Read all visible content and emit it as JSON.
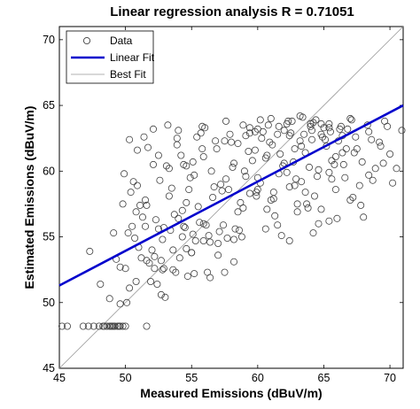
{
  "chart_data": {
    "type": "scatter",
    "title": "Linear regression analysis R = 0.71051",
    "xlabel": "Measured Emissions (dBuV/m)",
    "ylabel": "Estimated Emissions (dBuV/m)",
    "xlim": [
      45,
      71
    ],
    "ylim": [
      45,
      71
    ],
    "xticks": [
      "45",
      "50",
      "55",
      "60",
      "65",
      "70"
    ],
    "yticks": [
      "45",
      "50",
      "55",
      "60",
      "65",
      "70"
    ],
    "grid": false,
    "legend_position": "top-left",
    "legend": [
      "Data",
      "Linear Fit",
      "Best Fit"
    ],
    "colors": {
      "data": "#404040",
      "linear_fit": "#0000cc",
      "best_fit": "#999999"
    },
    "linear_fit": {
      "x": [
        45,
        71
      ],
      "y": [
        51.3,
        65.0
      ]
    },
    "best_fit": {
      "x": [
        45,
        71
      ],
      "y": [
        45,
        71
      ]
    },
    "series": [
      {
        "name": "Data",
        "x": [
          45.2,
          45.6,
          46.8,
          47.2,
          47.6,
          48.0,
          48.3,
          48.6,
          48.8,
          49.0,
          49.2,
          49.4,
          49.6,
          49.8,
          50.0,
          48.4,
          48.9,
          49.1,
          49.5,
          51.6,
          47.3,
          48.1,
          48.8,
          49.1,
          49.6,
          49.9,
          50.3,
          50.8,
          51.2,
          51.6,
          52.0,
          52.4,
          52.9,
          53.3,
          53.8,
          54.2,
          54.6,
          55.0,
          55.4,
          55.9,
          49.3,
          49.8,
          50.1,
          50.5,
          50.9,
          51.4,
          51.8,
          52.3,
          52.7,
          53.1,
          53.6,
          54.0,
          54.5,
          54.9,
          55.3,
          55.8,
          56.2,
          56.6,
          57.1,
          57.5,
          49.6,
          50.2,
          50.6,
          51.0,
          51.5,
          51.9,
          52.5,
          52.8,
          53.2,
          53.7,
          54.1,
          54.4,
          54.8,
          55.2,
          55.7,
          56.1,
          56.5,
          57.0,
          57.3,
          57.9,
          50.0,
          50.4,
          50.8,
          51.3,
          51.7,
          52.2,
          52.6,
          53.0,
          53.4,
          53.9,
          54.3,
          54.7,
          55.1,
          55.6,
          56.0,
          56.4,
          56.9,
          57.4,
          57.8,
          58.2,
          50.3,
          50.7,
          51.1,
          51.6,
          52.1,
          52.5,
          52.9,
          53.5,
          53.9,
          54.3,
          54.6,
          55.0,
          55.5,
          55.9,
          56.3,
          56.8,
          57.2,
          57.7,
          58.1,
          58.6,
          58.9,
          59.3,
          59.8,
          60.2,
          60.6,
          61.0,
          61.5,
          61.9,
          62.3,
          62.8,
          63.2,
          63.6,
          64.1,
          64.5,
          64.9,
          65.4,
          65.8,
          66.2,
          66.7,
          67.1,
          58.5,
          59.0,
          59.4,
          59.9,
          60.3,
          60.7,
          61.2,
          61.6,
          62.0,
          62.5,
          62.9,
          63.3,
          63.8,
          64.2,
          64.6,
          65.1,
          65.5,
          65.9,
          66.4,
          66.8,
          58.2,
          58.7,
          59.1,
          59.6,
          60.0,
          60.4,
          60.9,
          61.3,
          61.7,
          62.2,
          62.6,
          63.0,
          63.5,
          63.9,
          64.3,
          64.8,
          65.2,
          65.6,
          66.1,
          66.5,
          57.6,
          58.0,
          58.5,
          58.9,
          59.4,
          59.8,
          60.2,
          60.7,
          61.1,
          61.5,
          62.0,
          62.4,
          62.8,
          63.3,
          63.7,
          64.1,
          64.6,
          65.0,
          65.4,
          65.9,
          67.4,
          67.9,
          68.3,
          68.7,
          69.2,
          69.6,
          70.0,
          70.5,
          70.9,
          67.0,
          67.5,
          68.0,
          68.4,
          68.9,
          69.3,
          69.8,
          70.2,
          67.7,
          68.6,
          69.5,
          50.9,
          51.5,
          52.1,
          52.7,
          53.3,
          54.0,
          54.6,
          55.2,
          55.8,
          56.4,
          57.0,
          57.6,
          58.2,
          58.8,
          59.4,
          60.0,
          60.6,
          61.2,
          61.8,
          62.4,
          63.0,
          63.6,
          64.2,
          64.8,
          65.4,
          66.0,
          66.6,
          67.2,
          67.8,
          68.4,
          60.0,
          61.0,
          62.2,
          63.4,
          64.4,
          65.4,
          66.4,
          67.3,
          64.0,
          62.7,
          52.2,
          52.8,
          53.6,
          54.4,
          55.1,
          55.9,
          56.7,
          57.5,
          58.3,
          59.1,
          59.9,
          60.8,
          61.6,
          62.4,
          63.2,
          64.0,
          64.8,
          65.6,
          66.3,
          67.0
        ],
        "y": [
          48.2,
          48.2,
          48.2,
          48.2,
          48.2,
          48.2,
          48.2,
          48.2,
          48.2,
          48.2,
          48.2,
          48.2,
          48.2,
          48.2,
          48.2,
          48.2,
          48.2,
          48.2,
          48.2,
          48.2,
          53.9,
          51.4,
          50.3,
          55.3,
          52.7,
          59.8,
          62.4,
          56.9,
          53.4,
          57.4,
          54.0,
          51.4,
          55.7,
          60.2,
          52.3,
          61.2,
          57.6,
          53.8,
          62.6,
          56.0,
          53.3,
          57.5,
          50.0,
          55.8,
          58.9,
          62.6,
          53.0,
          56.3,
          50.6,
          60.4,
          52.5,
          63.1,
          55.7,
          59.5,
          54.7,
          61.7,
          52.3,
          58.0,
          55.4,
          62.3,
          49.9,
          55.3,
          59.2,
          54.2,
          57.8,
          51.6,
          61.2,
          54.8,
          63.5,
          56.7,
          53.4,
          60.5,
          58.6,
          52.2,
          62.9,
          55.9,
          60.0,
          53.6,
          58.5,
          62.8,
          52.6,
          58.4,
          51.6,
          56.5,
          61.8,
          53.5,
          59.3,
          50.4,
          55.5,
          62.0,
          57.0,
          52.0,
          60.7,
          56.1,
          63.3,
          54.6,
          61.7,
          55.9,
          58.6,
          53.1,
          51.1,
          54.9,
          57.4,
          53.2,
          60.5,
          55.6,
          52.6,
          58.7,
          62.5,
          55.0,
          60.4,
          53.8,
          57.3,
          61.1,
          55.1,
          62.3,
          59.0,
          54.9,
          60.3,
          55.5,
          57.2,
          61.5,
          63.0,
          59.1,
          61.0,
          57.8,
          62.8,
          60.4,
          63.8,
          58.9,
          62.3,
          61.4,
          63.1,
          59.6,
          62.6,
          63.6,
          60.5,
          63.2,
          61.7,
          63.9,
          62.1,
          60.0,
          63.3,
          58.1,
          62.5,
          61.2,
          57.9,
          63.4,
          60.6,
          62.9,
          59.4,
          61.9,
          57.2,
          63.7,
          60.1,
          62.4,
          63.0,
          58.6,
          61.4,
          63.2,
          60.6,
          57.6,
          62.7,
          60.8,
          59.5,
          63.0,
          62.2,
          56.6,
          61.3,
          59.9,
          63.8,
          57.5,
          62.8,
          60.3,
          58.1,
          63.6,
          61.9,
          59.4,
          62.3,
          60.5,
          59.4,
          62.2,
          56.9,
          63.5,
          58.3,
          61.6,
          63.9,
          57.1,
          62.0,
          55.9,
          63.1,
          58.8,
          61.7,
          59.2,
          57.5,
          62.4,
          56.0,
          63.3,
          59.9,
          61.1,
          62.6,
          60.7,
          63.5,
          59.3,
          62.2,
          63.8,
          61.3,
          60.2,
          63.1,
          57.8,
          61.7,
          56.5,
          63.0,
          60.2,
          61.9,
          63.4,
          59.1,
          58.9,
          62.4,
          60.6,
          61.6,
          55.8,
          63.2,
          53.2,
          58.1,
          56.4,
          54.1,
          59.7,
          63.4,
          51.9,
          54.5,
          63.8,
          54.8,
          55.0,
          62.9,
          58.6,
          55.6,
          58.4,
          55.1,
          54.7,
          56.9,
          58.4,
          55.3,
          57.1,
          56.2,
          56.4,
          59.5,
          58.0,
          57.4,
          59.7,
          63.2,
          64.0,
          63.6,
          64.1,
          63.9,
          63.3,
          62.7,
          61.4,
          63.4,
          60.7,
          52.6,
          52.5,
          54.0,
          55.8,
          55.2,
          54.7,
          58.8,
          52.3,
          55.6,
          59.6,
          58.4,
          63.5,
          59.8,
          62.7,
          64.2,
          63.6,
          62.8,
          60.8,
          63.4,
          64.0
        ]
      }
    ]
  }
}
